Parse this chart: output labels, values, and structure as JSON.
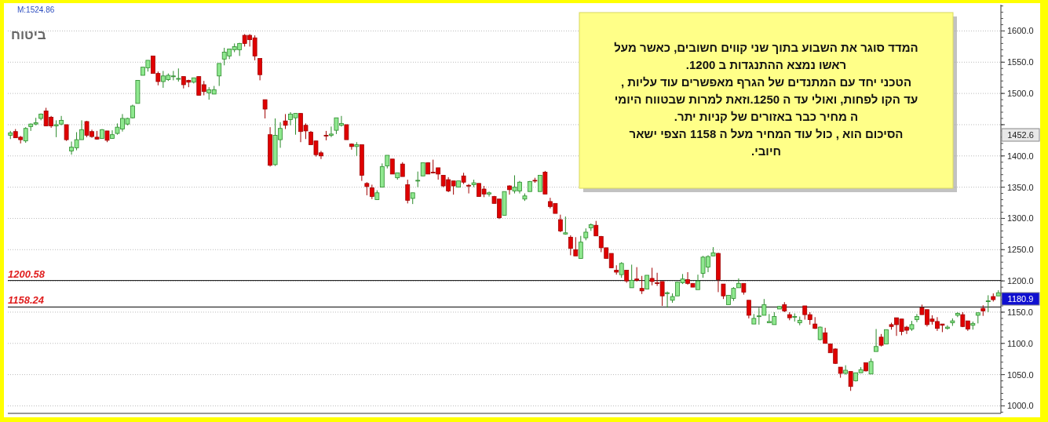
{
  "chart_data": {
    "type": "candlestick",
    "title": "ביטוח",
    "categories": [
      null,
      null,
      null,
      null,
      null,
      null,
      null,
      null,
      null,
      null,
      null,
      null,
      null,
      null,
      null,
      null,
      null,
      null,
      null,
      null,
      null,
      null,
      null,
      null,
      null,
      null,
      null,
      null,
      null,
      null,
      null,
      null,
      null,
      null,
      null,
      null,
      null,
      null,
      null,
      null,
      null,
      null,
      null,
      null,
      null,
      null,
      null,
      null,
      null,
      null,
      null,
      null,
      null,
      null,
      null,
      null,
      null,
      null,
      null,
      null,
      null,
      null,
      null,
      null,
      null,
      null,
      null,
      null,
      null,
      null,
      null,
      null,
      null,
      null,
      null,
      null,
      null,
      null,
      null,
      null,
      null,
      null,
      null,
      null,
      null,
      null,
      null,
      null,
      null,
      null,
      null,
      null,
      null,
      null,
      null,
      null,
      null,
      null,
      null,
      null,
      null,
      null,
      null,
      null,
      null,
      null,
      null,
      null,
      null,
      null,
      null,
      null,
      null,
      null,
      null,
      null,
      null,
      null,
      null,
      null,
      null,
      null,
      null,
      null,
      null,
      null,
      null,
      null,
      null,
      null,
      null,
      null,
      null,
      null,
      null,
      null,
      null,
      null,
      null,
      null,
      null,
      null,
      null,
      null,
      null,
      null,
      null,
      null,
      null,
      null,
      null,
      null,
      null,
      null,
      null,
      null,
      null,
      null,
      null,
      null,
      null,
      null,
      null,
      null,
      null,
      null,
      null,
      null,
      null,
      null,
      null,
      null,
      null,
      null,
      null,
      null,
      null,
      null,
      null,
      null,
      null,
      null,
      null,
      null,
      null,
      null,
      null,
      null,
      null,
      null,
      null,
      null,
      null,
      null,
      null
    ],
    "ohlc": [
      [
        1433,
        1440,
        1427,
        1437
      ],
      [
        1439,
        1443,
        1429,
        1429
      ],
      [
        1430,
        1432,
        1420,
        1426
      ],
      [
        1424,
        1446,
        1421,
        1444
      ],
      [
        1447,
        1452,
        1440,
        1451
      ],
      [
        1451,
        1461,
        1449,
        1453
      ],
      [
        1460,
        1468,
        1457,
        1467
      ],
      [
        1472,
        1477,
        1448,
        1448
      ],
      [
        1462,
        1464,
        1445,
        1448
      ],
      [
        1448,
        1457,
        1430,
        1450
      ],
      [
        1451,
        1464,
        1449,
        1457
      ],
      [
        1450,
        1450,
        1424,
        1426
      ],
      [
        1408,
        1423,
        1402,
        1414
      ],
      [
        1413,
        1438,
        1409,
        1426
      ],
      [
        1426,
        1457,
        1426,
        1442
      ],
      [
        1455,
        1456,
        1430,
        1433
      ],
      [
        1439,
        1442,
        1429,
        1431
      ],
      [
        1430,
        1440,
        1426,
        1427
      ],
      [
        1428,
        1443,
        1428,
        1442
      ],
      [
        1440,
        1440,
        1422,
        1425
      ],
      [
        1428,
        1441,
        1428,
        1434
      ],
      [
        1436,
        1452,
        1434,
        1446
      ],
      [
        1443,
        1467,
        1439,
        1460
      ],
      [
        1451,
        1461,
        1449,
        1460
      ],
      [
        1461,
        1482,
        1460,
        1480
      ],
      [
        1484,
        1521,
        1484,
        1521
      ],
      [
        1529,
        1542,
        1529,
        1542
      ],
      [
        1541,
        1553,
        1535,
        1553
      ],
      [
        1560,
        1560,
        1532,
        1532
      ],
      [
        1532,
        1535,
        1513,
        1519
      ],
      [
        1519,
        1536,
        1509,
        1528
      ],
      [
        1522,
        1532,
        1520,
        1529
      ],
      [
        1528,
        1536,
        1521,
        1528
      ],
      [
        1523,
        1540,
        1519,
        1524
      ],
      [
        1527,
        1527,
        1508,
        1514
      ],
      [
        1521,
        1522,
        1510,
        1518
      ],
      [
        1518,
        1525,
        1516,
        1525
      ],
      [
        1527,
        1527,
        1497,
        1497
      ],
      [
        1514,
        1520,
        1497,
        1503
      ],
      [
        1501,
        1510,
        1490,
        1506
      ],
      [
        1499,
        1512,
        1499,
        1506
      ],
      [
        1528,
        1548,
        1512,
        1548
      ],
      [
        1555,
        1573,
        1545,
        1566
      ],
      [
        1560,
        1571,
        1555,
        1571
      ],
      [
        1570,
        1580,
        1566,
        1575
      ],
      [
        1570,
        1581,
        1560,
        1580
      ],
      [
        1593,
        1595,
        1575,
        1580
      ],
      [
        1593,
        1595,
        1575,
        1586
      ],
      [
        1589,
        1593,
        1553,
        1560
      ],
      [
        1556,
        1556,
        1521,
        1530
      ],
      [
        1490,
        1490,
        1460,
        1475
      ],
      [
        1434,
        1446,
        1383,
        1385
      ],
      [
        1386,
        1460,
        1384,
        1433
      ],
      [
        1426,
        1454,
        1413,
        1444
      ],
      [
        1456,
        1467,
        1443,
        1449
      ],
      [
        1458,
        1470,
        1449,
        1467
      ],
      [
        1461,
        1468,
        1434,
        1468
      ],
      [
        1468,
        1468,
        1422,
        1439
      ],
      [
        1449,
        1452,
        1427,
        1440
      ],
      [
        1438,
        1440,
        1418,
        1418
      ],
      [
        1424,
        1424,
        1399,
        1402
      ],
      [
        1405,
        1408,
        1395,
        1400
      ],
      [
        1433,
        1440,
        1425,
        1432
      ],
      [
        1433,
        1447,
        1430,
        1435
      ],
      [
        1441,
        1461,
        1435,
        1461
      ],
      [
        1449,
        1464,
        1447,
        1452
      ],
      [
        1450,
        1450,
        1426,
        1426
      ],
      [
        1419,
        1420,
        1410,
        1415
      ],
      [
        1415,
        1422,
        1400,
        1418
      ],
      [
        1418,
        1418,
        1360,
        1369
      ],
      [
        1356,
        1358,
        1337,
        1351
      ],
      [
        1349,
        1354,
        1331,
        1335
      ],
      [
        1330,
        1345,
        1330,
        1341
      ],
      [
        1350,
        1388,
        1350,
        1383
      ],
      [
        1384,
        1401,
        1380,
        1401
      ],
      [
        1395,
        1395,
        1371,
        1371
      ],
      [
        1365,
        1373,
        1362,
        1373
      ],
      [
        1387,
        1390,
        1367,
        1367
      ],
      [
        1354,
        1362,
        1324,
        1329
      ],
      [
        1332,
        1341,
        1323,
        1341
      ],
      [
        1360,
        1375,
        1350,
        1361
      ],
      [
        1368,
        1389,
        1368,
        1389
      ],
      [
        1389,
        1390,
        1371,
        1371
      ],
      [
        1374,
        1394,
        1372,
        1373
      ],
      [
        1381,
        1381,
        1362,
        1371
      ],
      [
        1369,
        1369,
        1350,
        1352
      ],
      [
        1362,
        1366,
        1342,
        1344
      ],
      [
        1360,
        1360,
        1338,
        1352
      ],
      [
        1350,
        1360,
        1350,
        1360
      ],
      [
        1368,
        1373,
        1355,
        1358
      ],
      [
        1353,
        1355,
        1340,
        1352
      ],
      [
        1354,
        1362,
        1350,
        1357
      ],
      [
        1356,
        1356,
        1335,
        1335
      ],
      [
        1347,
        1352,
        1334,
        1339
      ],
      [
        1339,
        1343,
        1335,
        1341
      ],
      [
        1335,
        1336,
        1324,
        1324
      ],
      [
        1331,
        1331,
        1299,
        1301
      ],
      [
        1305,
        1343,
        1305,
        1343
      ],
      [
        1352,
        1353,
        1338,
        1346
      ],
      [
        1344,
        1369,
        1340,
        1350
      ],
      [
        1344,
        1360,
        1340,
        1358
      ],
      [
        1331,
        1340,
        1328,
        1336
      ],
      [
        1343,
        1360,
        1343,
        1359
      ],
      [
        1361,
        1365,
        1357,
        1360
      ],
      [
        1343,
        1369,
        1343,
        1369
      ],
      [
        1374,
        1376,
        1339,
        1339
      ],
      [
        1327,
        1333,
        1316,
        1319
      ],
      [
        1324,
        1324,
        1308,
        1308
      ],
      [
        1298,
        1306,
        1278,
        1280
      ],
      [
        1275,
        1303,
        1274,
        1277
      ],
      [
        1270,
        1273,
        1241,
        1252
      ],
      [
        1250,
        1270,
        1240,
        1240
      ],
      [
        1236,
        1272,
        1236,
        1262
      ],
      [
        1269,
        1284,
        1265,
        1278
      ],
      [
        1285,
        1292,
        1280,
        1290
      ],
      [
        1289,
        1296,
        1272,
        1272
      ],
      [
        1271,
        1272,
        1246,
        1253
      ],
      [
        1253,
        1253,
        1236,
        1236
      ],
      [
        1244,
        1244,
        1221,
        1221
      ],
      [
        1217,
        1225,
        1210,
        1214
      ],
      [
        1210,
        1230,
        1205,
        1228
      ],
      [
        1217,
        1217,
        1197,
        1200
      ],
      [
        1189,
        1226,
        1189,
        1201
      ],
      [
        1203,
        1222,
        1199,
        1201
      ],
      [
        1188,
        1208,
        1179,
        1184
      ],
      [
        1187,
        1209,
        1187,
        1209
      ],
      [
        1204,
        1221,
        1193,
        1199
      ],
      [
        1197,
        1213,
        1192,
        1196
      ],
      [
        1199,
        1199,
        1160,
        1176
      ],
      [
        1180,
        1183,
        1157,
        1181
      ],
      [
        1169,
        1180,
        1165,
        1175
      ],
      [
        1176,
        1198,
        1176,
        1198
      ],
      [
        1197,
        1211,
        1195,
        1203
      ],
      [
        1202,
        1214,
        1194,
        1196
      ],
      [
        1196,
        1196,
        1190,
        1190
      ],
      [
        1186,
        1210,
        1186,
        1200
      ],
      [
        1212,
        1240,
        1205,
        1238
      ],
      [
        1222,
        1241,
        1214,
        1239
      ],
      [
        1240,
        1254,
        1240,
        1245
      ],
      [
        1244,
        1245,
        1182,
        1202
      ],
      [
        1195,
        1195,
        1171,
        1176
      ],
      [
        1162,
        1177,
        1162,
        1177
      ],
      [
        1172,
        1190,
        1168,
        1188
      ],
      [
        1189,
        1204,
        1189,
        1196
      ],
      [
        1196,
        1196,
        1178,
        1182
      ],
      [
        1169,
        1169,
        1140,
        1145
      ],
      [
        1131,
        1147,
        1131,
        1140
      ],
      [
        1143,
        1157,
        1130,
        1144
      ],
      [
        1145,
        1171,
        1145,
        1162
      ],
      [
        1133,
        1147,
        1133,
        1135
      ],
      [
        1130,
        1150,
        1130,
        1143
      ],
      [
        1155,
        1160,
        1155,
        1159
      ],
      [
        1162,
        1166,
        1150,
        1152
      ],
      [
        1146,
        1150,
        1137,
        1141
      ],
      [
        1142,
        1148,
        1135,
        1143
      ],
      [
        1133,
        1143,
        1129,
        1137
      ],
      [
        1160,
        1160,
        1138,
        1146
      ],
      [
        1146,
        1150,
        1130,
        1138
      ],
      [
        1131,
        1142,
        1123,
        1124
      ],
      [
        1106,
        1127,
        1105,
        1126
      ],
      [
        1117,
        1125,
        1100,
        1100
      ],
      [
        1099,
        1099,
        1085,
        1085
      ],
      [
        1091,
        1092,
        1067,
        1068
      ],
      [
        1062,
        1062,
        1045,
        1052
      ],
      [
        1052,
        1065,
        1050,
        1057
      ],
      [
        1055,
        1055,
        1024,
        1031
      ],
      [
        1040,
        1053,
        1039,
        1053
      ],
      [
        1053,
        1062,
        1053,
        1058
      ],
      [
        1069,
        1069,
        1055,
        1056
      ],
      [
        1051,
        1076,
        1051,
        1071
      ],
      [
        1087,
        1123,
        1087,
        1095
      ],
      [
        1110,
        1115,
        1095,
        1097
      ],
      [
        1099,
        1122,
        1099,
        1122
      ],
      [
        1130,
        1133,
        1122,
        1127
      ],
      [
        1141,
        1141,
        1112,
        1130
      ],
      [
        1139,
        1139,
        1113,
        1119
      ],
      [
        1126,
        1128,
        1115,
        1121
      ],
      [
        1123,
        1136,
        1120,
        1130
      ],
      [
        1138,
        1147,
        1134,
        1143
      ],
      [
        1157,
        1162,
        1146,
        1146
      ],
      [
        1154,
        1154,
        1127,
        1130
      ],
      [
        1139,
        1145,
        1130,
        1135
      ],
      [
        1135,
        1142,
        1120,
        1124
      ],
      [
        1131,
        1131,
        1118,
        1129
      ],
      [
        1124,
        1129,
        1122,
        1126
      ],
      [
        1133,
        1140,
        1128,
        1136
      ],
      [
        1145,
        1150,
        1142,
        1148
      ],
      [
        1146,
        1150,
        1126,
        1127
      ],
      [
        1136,
        1136,
        1120,
        1123
      ],
      [
        1129,
        1135,
        1122,
        1132
      ],
      [
        1145,
        1149,
        1132,
        1149
      ],
      [
        1156,
        1161,
        1144,
        1152
      ],
      [
        1167,
        1177,
        1150,
        1168
      ],
      [
        1175,
        1180,
        1167,
        1170
      ],
      [
        1176,
        1185,
        1176,
        1181
      ]
    ],
    "colors": [
      "#8fe88f",
      "#e00000",
      "#e00000",
      "#8fe88f",
      "#8fe88f",
      "#8fe88f",
      "#8fe88f",
      "#e00000",
      "#e00000",
      "#8fe88f",
      "#8fe88f",
      "#e00000",
      "#8fe88f",
      "#8fe88f",
      "#8fe88f",
      "#e00000",
      "#e00000",
      "#e00000",
      "#8fe88f",
      "#e00000",
      "#8fe88f",
      "#8fe88f",
      "#8fe88f",
      "#8fe88f",
      "#8fe88f",
      "#8fe88f",
      "#8fe88f",
      "#8fe88f",
      "#e00000",
      "#e00000",
      "#8fe88f",
      "#8fe88f",
      "#8fe88f",
      "#8fe88f",
      "#e00000",
      "#e00000",
      "#8fe88f",
      "#e00000",
      "#e00000",
      "#8fe88f",
      "#8fe88f",
      "#8fe88f",
      "#8fe88f",
      "#8fe88f",
      "#8fe88f",
      "#8fe88f",
      "#e00000",
      "#e00000",
      "#e00000",
      "#e00000",
      "#e00000",
      "#e00000",
      "#8fe88f",
      "#8fe88f",
      "#e00000",
      "#8fe88f",
      "#8fe88f",
      "#e00000",
      "#e00000",
      "#e00000",
      "#e00000",
      "#e00000",
      "#e00000",
      "#8fe88f",
      "#8fe88f",
      "#8fe88f",
      "#e00000",
      "#e00000",
      "#8fe88f",
      "#e00000",
      "#e00000",
      "#e00000",
      "#8fe88f",
      "#8fe88f",
      "#8fe88f",
      "#e00000",
      "#8fe88f",
      "#e00000",
      "#e00000",
      "#8fe88f",
      "#8fe88f",
      "#8fe88f",
      "#e00000",
      "#e00000",
      "#e00000",
      "#e00000",
      "#e00000",
      "#e00000",
      "#8fe88f",
      "#e00000",
      "#e00000",
      "#8fe88f",
      "#e00000",
      "#e00000",
      "#8fe88f",
      "#e00000",
      "#e00000",
      "#8fe88f",
      "#e00000",
      "#8fe88f",
      "#8fe88f",
      "#8fe88f",
      "#8fe88f",
      "#e00000",
      "#8fe88f",
      "#e00000",
      "#e00000",
      "#e00000",
      "#e00000",
      "#8fe88f",
      "#e00000",
      "#e00000",
      "#8fe88f",
      "#8fe88f",
      "#8fe88f",
      "#e00000",
      "#e00000",
      "#e00000",
      "#e00000",
      "#e00000",
      "#8fe88f",
      "#e00000",
      "#8fe88f",
      "#e00000",
      "#e00000",
      "#8fe88f",
      "#e00000",
      "#e00000",
      "#e00000",
      "#8fe88f",
      "#8fe88f",
      "#8fe88f",
      "#8fe88f",
      "#e00000",
      "#e00000",
      "#8fe88f",
      "#8fe88f",
      "#8fe88f",
      "#8fe88f",
      "#e00000",
      "#e00000",
      "#8fe88f",
      "#8fe88f",
      "#8fe88f",
      "#e00000",
      "#e00000",
      "#8fe88f",
      "#8fe88f",
      "#8fe88f",
      "#8fe88f",
      "#8fe88f",
      "#8fe88f",
      "#e00000",
      "#e00000",
      "#8fe88f",
      "#8fe88f",
      "#e00000",
      "#e00000",
      "#e00000",
      "#8fe88f",
      "#e00000",
      "#e00000",
      "#e00000",
      "#e00000",
      "#8fe88f",
      "#e00000",
      "#8fe88f",
      "#8fe88f",
      "#e00000",
      "#8fe88f",
      "#8fe88f",
      "#e00000",
      "#8fe88f",
      "#e00000",
      "#e00000",
      "#e00000",
      "#e00000",
      "#8fe88f",
      "#8fe88f",
      "#e00000",
      "#e00000",
      "#e00000",
      "#e00000",
      "#e00000",
      "#8fe88f",
      "#8fe88f",
      "#8fe88f",
      "#e00000",
      "#e00000",
      "#8fe88f",
      "#8fe88f",
      "#e00000",
      "#8fe88f",
      "#e00000",
      "#8fe88f"
    ],
    "ylim": [
      988,
      1642
    ],
    "yticks": [
      {
        "value": 1000,
        "label": "1000.0"
      },
      {
        "value": 1050,
        "label": "1050.0"
      },
      {
        "value": 1100,
        "label": "1100.0"
      },
      {
        "value": 1150,
        "label": "1150.0"
      },
      {
        "value": 1200,
        "label": "1200.0"
      },
      {
        "value": 1250,
        "label": "1250.0"
      },
      {
        "value": 1300,
        "label": "1300.0"
      },
      {
        "value": 1350,
        "label": "1350.0"
      },
      {
        "value": 1400,
        "label": "1400.0"
      },
      {
        "value": 1450,
        "label": null
      },
      {
        "value": 1500,
        "label": "1500.0"
      },
      {
        "value": 1550,
        "label": "1550.0"
      },
      {
        "value": 1600,
        "label": "1600.0"
      }
    ],
    "grid": "y",
    "ref_lines": [
      {
        "axis": "y",
        "value": 1200.58,
        "label": "1200.58",
        "color": "#000000"
      },
      {
        "axis": "y",
        "value": 1158.24,
        "label": "1158.24",
        "color": "#000000"
      }
    ],
    "annotations": [
      "M:1524.86",
      "1452.6",
      "1180.9",
      "המדד סוגר את השבוע בתוך שני קווים חשובים, כאשר מעל\nראשו נמצא ההתנגדות ב 1200.\nהטכני יחד עם המתנדים של הגרף מאפשרים עוד עליות ,\nעד הקו לפחות, ואולי עד ה 1250.וזאת למרות שבטווח היומי\nה מחיר כבר באזורים של קניות יתר.\nהסיכום הוא , כול עוד המחיר מעל ה 1158 הצפי ישאר\nחיובי."
    ]
  }
}
